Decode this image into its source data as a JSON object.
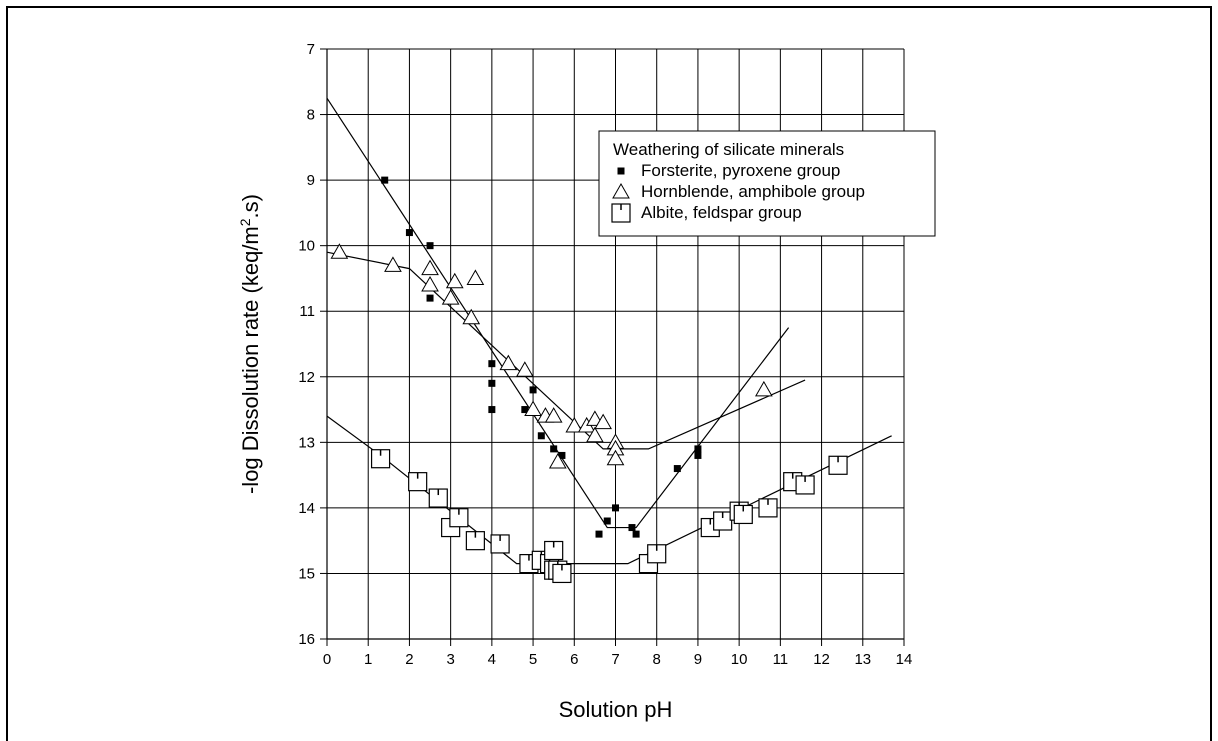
{
  "chart_data": {
    "type": "scatter",
    "xlabel": "Solution pH",
    "ylabel": "-log Dissolution rate (keq/m².s)",
    "xlim": [
      0,
      14
    ],
    "ylim": [
      16,
      7
    ],
    "y_inverted": true,
    "grid": true,
    "legend_position": "top-right",
    "x_ticks": [
      "0",
      "1",
      "2",
      "3",
      "4",
      "5",
      "6",
      "7",
      "8",
      "9",
      "10",
      "11",
      "12",
      "13",
      "14"
    ],
    "y_ticks": [
      "7",
      "8",
      "9",
      "10",
      "11",
      "12",
      "13",
      "14",
      "15",
      "16"
    ],
    "legend": {
      "title": "Weathering of silicate minerals",
      "entries": [
        "Forsterite, pyroxene group",
        "Hornblende, amphibole group",
        "Albite, feldspar group"
      ]
    },
    "series": [
      {
        "name": "Forsterite, pyroxene group",
        "marker": "filled-square",
        "points": [
          [
            1.4,
            9.0
          ],
          [
            2.0,
            9.8
          ],
          [
            2.5,
            10.0
          ],
          [
            2.5,
            10.8
          ],
          [
            4.0,
            11.8
          ],
          [
            4.0,
            12.1
          ],
          [
            4.0,
            12.5
          ],
          [
            4.8,
            12.5
          ],
          [
            5.0,
            12.2
          ],
          [
            5.2,
            12.9
          ],
          [
            5.5,
            13.1
          ],
          [
            5.7,
            13.2
          ],
          [
            6.6,
            14.4
          ],
          [
            6.8,
            14.2
          ],
          [
            7.0,
            14.0
          ],
          [
            7.4,
            14.3
          ],
          [
            7.5,
            14.4
          ],
          [
            8.5,
            13.4
          ],
          [
            9.0,
            13.1
          ],
          [
            9.0,
            13.2
          ]
        ],
        "fit": [
          [
            0,
            7.75
          ],
          [
            6.8,
            14.3
          ],
          [
            7.5,
            14.3
          ],
          [
            11.2,
            11.25
          ]
        ]
      },
      {
        "name": "Hornblende, amphibole group",
        "marker": "triangle",
        "points": [
          [
            0.3,
            10.1
          ],
          [
            1.6,
            10.3
          ],
          [
            2.5,
            10.35
          ],
          [
            2.5,
            10.6
          ],
          [
            3.0,
            10.8
          ],
          [
            3.1,
            10.55
          ],
          [
            3.5,
            11.1
          ],
          [
            3.6,
            10.5
          ],
          [
            4.4,
            11.8
          ],
          [
            4.8,
            11.9
          ],
          [
            5.0,
            12.5
          ],
          [
            5.3,
            12.6
          ],
          [
            5.5,
            12.6
          ],
          [
            5.6,
            13.3
          ],
          [
            6.0,
            12.75
          ],
          [
            6.3,
            12.75
          ],
          [
            6.5,
            12.9
          ],
          [
            6.5,
            12.65
          ],
          [
            6.7,
            12.7
          ],
          [
            7.0,
            13.0
          ],
          [
            7.0,
            13.1
          ],
          [
            7.0,
            13.25
          ],
          [
            10.6,
            12.2
          ]
        ],
        "fit": [
          [
            0,
            10.1
          ],
          [
            2.0,
            10.35
          ],
          [
            6.7,
            13.1
          ],
          [
            7.8,
            13.1
          ],
          [
            11.6,
            12.05
          ]
        ]
      },
      {
        "name": "Albite, feldspar group",
        "marker": "square-tick",
        "points": [
          [
            1.3,
            13.25
          ],
          [
            2.2,
            13.6
          ],
          [
            2.7,
            13.85
          ],
          [
            3.0,
            14.3
          ],
          [
            3.2,
            14.15
          ],
          [
            3.6,
            14.5
          ],
          [
            4.2,
            14.55
          ],
          [
            4.9,
            14.85
          ],
          [
            5.2,
            14.8
          ],
          [
            5.4,
            14.85
          ],
          [
            5.5,
            14.95
          ],
          [
            5.5,
            14.65
          ],
          [
            5.6,
            14.95
          ],
          [
            5.7,
            15.0
          ],
          [
            7.8,
            14.85
          ],
          [
            8.0,
            14.7
          ],
          [
            9.3,
            14.3
          ],
          [
            9.6,
            14.2
          ],
          [
            10.0,
            14.05
          ],
          [
            10.1,
            14.1
          ],
          [
            10.7,
            14.0
          ],
          [
            11.3,
            13.6
          ],
          [
            11.6,
            13.65
          ],
          [
            12.4,
            13.35
          ]
        ],
        "fit": [
          [
            0,
            12.6
          ],
          [
            1.3,
            13.2
          ],
          [
            4.6,
            14.85
          ],
          [
            7.3,
            14.85
          ],
          [
            13.7,
            12.9
          ]
        ]
      }
    ]
  }
}
